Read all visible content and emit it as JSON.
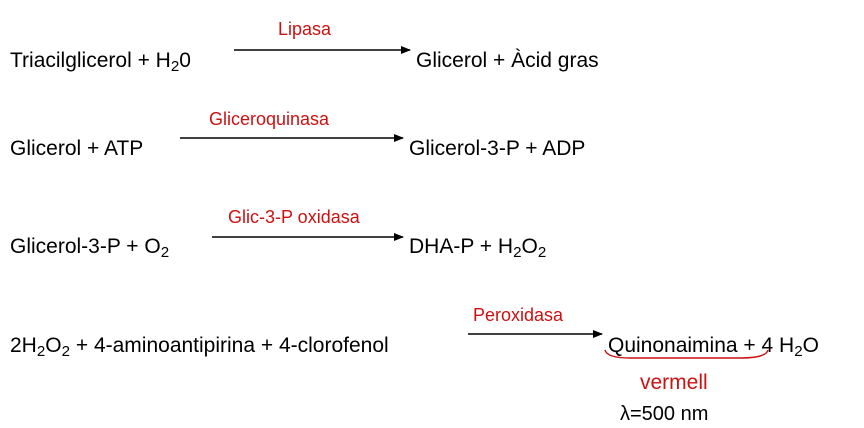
{
  "reactions": [
    {
      "enzyme": "Lipasa",
      "reactants": [
        "Triacilglicerol + H",
        "2",
        "0"
      ],
      "products": [
        "Glicerol + Àcid gras"
      ]
    },
    {
      "enzyme": "Gliceroquinasa",
      "reactants": [
        "Glicerol + ATP"
      ],
      "products": [
        "Glicerol-3-P + ADP"
      ]
    },
    {
      "enzyme": "Glic-3-P oxidasa",
      "reactants": [
        "Glicerol-3-P + O",
        "2"
      ],
      "products": [
        "DHA-P + H",
        "2",
        "O",
        "2"
      ]
    },
    {
      "enzyme": "Peroxidasa",
      "reactants": [
        "2H",
        "2",
        "O",
        "2",
        " + 4-aminoantipirina + 4-clorofenol"
      ],
      "products": [
        "Quinonaimina",
        " + 4 H",
        "2",
        "O"
      ]
    }
  ],
  "annotation": {
    "color_label": "vermell",
    "wavelength": "λ=500 nm"
  },
  "colors": {
    "enzyme": "#cc1111",
    "text": "#000000"
  }
}
